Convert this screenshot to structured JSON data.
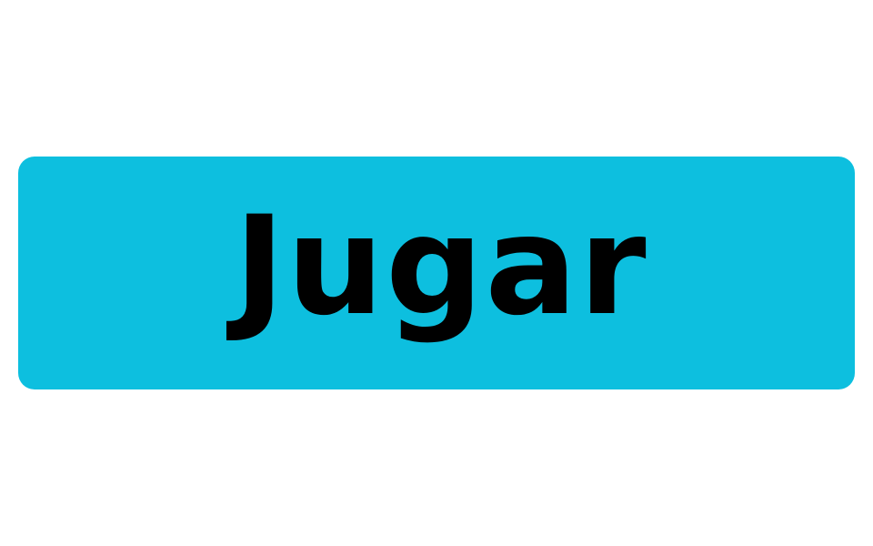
{
  "play_button": {
    "label": "Jugar",
    "background_color": "#0dbfdf",
    "text_color": "#000000"
  },
  "page": {
    "background_color": "#ffffff"
  }
}
